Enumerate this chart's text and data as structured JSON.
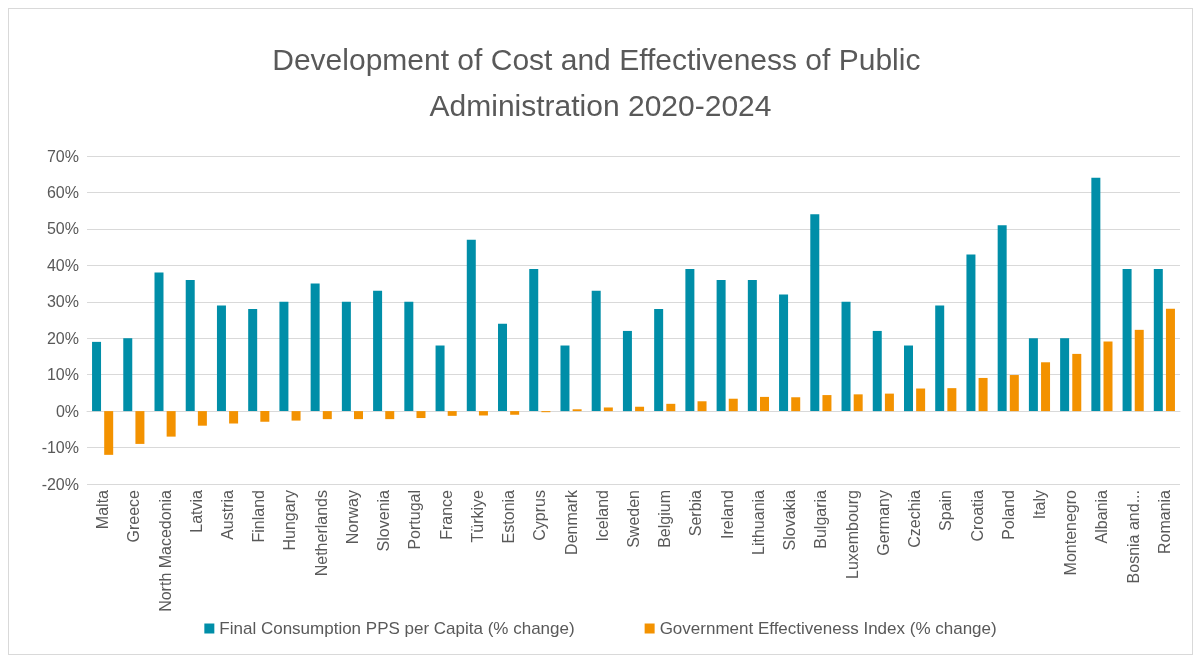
{
  "chart_data": {
    "type": "bar",
    "title": "Development of Cost and Effectiveness of Public Administration 2020-2024",
    "categories": [
      "Malta",
      "Greece",
      "North Macedonia",
      "Latvia",
      "Austria",
      "Finland",
      "Hungary",
      "Netherlands",
      "Norway",
      "Slovenia",
      "Portugal",
      "France",
      "Türkiye",
      "Estonia",
      "Cyprus",
      "Denmark",
      "Iceland",
      "Sweden",
      "Belgium",
      "Serbia",
      "Ireland",
      "Lithuania",
      "Slovakia",
      "Bulgaria",
      "Luxembourg",
      "Germany",
      "Czechia",
      "Spain",
      "Croatia",
      "Poland",
      "Italy",
      "Montenegro",
      "Albania",
      "Bosnia and...",
      "Romania"
    ],
    "series": [
      {
        "name": "Final Consumption PPS per Capita (% change)",
        "color": "#008ea8",
        "values": [
          19,
          20,
          38,
          36,
          29,
          28,
          30,
          35,
          30,
          33,
          30,
          18,
          47,
          24,
          39,
          18,
          33,
          22,
          28,
          39,
          36,
          36,
          32,
          54,
          30,
          22,
          18,
          29,
          43,
          51,
          20,
          20,
          64,
          39,
          39
        ]
      },
      {
        "name": "Government Effectiveness Index (% change)",
        "color": "#f39200",
        "values": [
          -12,
          -9,
          -7,
          -4,
          -3.4,
          -2.9,
          -2.6,
          -2.2,
          -2.2,
          -2.2,
          -1.9,
          -1.3,
          -1.2,
          -1,
          -0.3,
          0.5,
          1,
          1.2,
          2,
          2.7,
          3.4,
          3.9,
          3.8,
          4.4,
          4.6,
          4.8,
          6.2,
          6.3,
          9.1,
          9.9,
          13.4,
          15.7,
          19.1,
          22.3,
          28.1
        ]
      }
    ],
    "ylim": [
      -20,
      70
    ],
    "yticks": [
      {
        "value": -20,
        "label": "-20%"
      },
      {
        "value": -10,
        "label": "-10%"
      },
      {
        "value": 0,
        "label": "0%"
      },
      {
        "value": 10,
        "label": "10%"
      },
      {
        "value": 20,
        "label": "20%"
      },
      {
        "value": 30,
        "label": "30%"
      },
      {
        "value": 40,
        "label": "40%"
      },
      {
        "value": 50,
        "label": "50%"
      },
      {
        "value": 60,
        "label": "60%"
      },
      {
        "value": 70,
        "label": "70%"
      }
    ],
    "grid": "y",
    "legend": "bottom"
  }
}
